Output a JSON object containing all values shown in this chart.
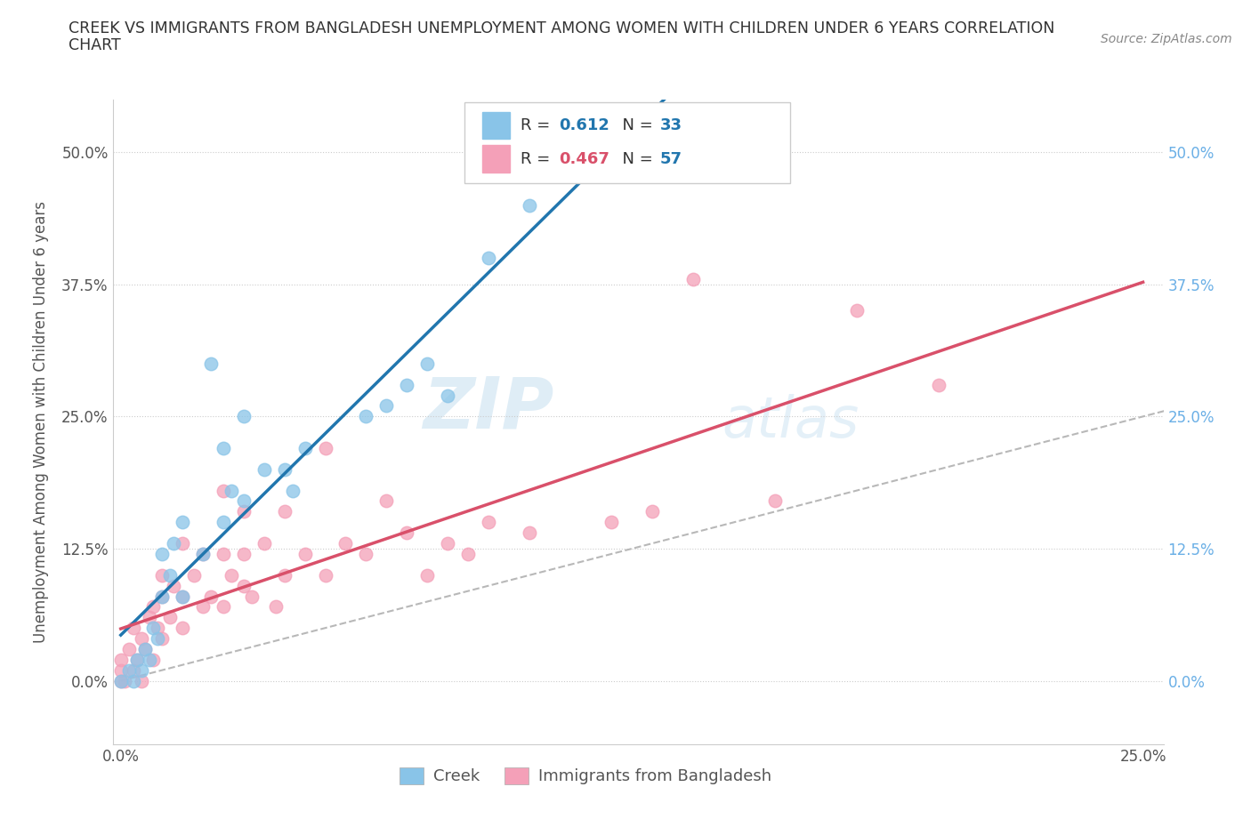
{
  "title_line1": "CREEK VS IMMIGRANTS FROM BANGLADESH UNEMPLOYMENT AMONG WOMEN WITH CHILDREN UNDER 6 YEARS CORRELATION",
  "title_line2": "CHART",
  "source_text": "Source: ZipAtlas.com",
  "ylabel": "Unemployment Among Women with Children Under 6 years",
  "xlim": [
    -0.002,
    0.255
  ],
  "ylim": [
    -0.06,
    0.55
  ],
  "yticks": [
    0.0,
    0.125,
    0.25,
    0.375,
    0.5
  ],
  "ytick_labels": [
    "0.0%",
    "12.5%",
    "25.0%",
    "37.5%",
    "50.0%"
  ],
  "xticks": [
    0.0,
    0.05,
    0.1,
    0.15,
    0.2,
    0.25
  ],
  "xtick_labels": [
    "0.0%",
    "",
    "",
    "",
    "",
    "25.0%"
  ],
  "creek_color": "#89c4e8",
  "bangladesh_color": "#f4a0b8",
  "trendline_creek_color": "#2176ae",
  "trendline_bangladesh_color": "#d9506a",
  "diagonal_color": "#b8b8b8",
  "R_creek": 0.612,
  "N_creek": 33,
  "R_bangladesh": 0.467,
  "N_bangladesh": 57,
  "watermark_zip": "ZIP",
  "watermark_atlas": "atlas",
  "legend_label_creek": "Creek",
  "legend_label_bangladesh": "Immigrants from Bangladesh",
  "creek_x": [
    0.0,
    0.002,
    0.003,
    0.004,
    0.005,
    0.006,
    0.007,
    0.008,
    0.009,
    0.01,
    0.01,
    0.012,
    0.013,
    0.015,
    0.015,
    0.02,
    0.022,
    0.025,
    0.025,
    0.027,
    0.03,
    0.03,
    0.035,
    0.04,
    0.042,
    0.045,
    0.06,
    0.065,
    0.07,
    0.075,
    0.08,
    0.09,
    0.1
  ],
  "creek_y": [
    0.0,
    0.01,
    0.0,
    0.02,
    0.01,
    0.03,
    0.02,
    0.05,
    0.04,
    0.08,
    0.12,
    0.1,
    0.13,
    0.08,
    0.15,
    0.12,
    0.3,
    0.15,
    0.22,
    0.18,
    0.17,
    0.25,
    0.2,
    0.2,
    0.18,
    0.22,
    0.25,
    0.26,
    0.28,
    0.3,
    0.27,
    0.4,
    0.45
  ],
  "bangladesh_x": [
    0.0,
    0.0,
    0.0,
    0.001,
    0.002,
    0.003,
    0.003,
    0.004,
    0.005,
    0.005,
    0.006,
    0.007,
    0.008,
    0.008,
    0.009,
    0.01,
    0.01,
    0.01,
    0.012,
    0.013,
    0.015,
    0.015,
    0.015,
    0.018,
    0.02,
    0.02,
    0.022,
    0.025,
    0.025,
    0.025,
    0.027,
    0.03,
    0.03,
    0.03,
    0.032,
    0.035,
    0.038,
    0.04,
    0.04,
    0.045,
    0.05,
    0.05,
    0.055,
    0.06,
    0.065,
    0.07,
    0.075,
    0.08,
    0.085,
    0.09,
    0.1,
    0.12,
    0.13,
    0.14,
    0.16,
    0.18,
    0.2
  ],
  "bangladesh_y": [
    0.0,
    0.01,
    0.02,
    0.0,
    0.03,
    0.01,
    0.05,
    0.02,
    0.0,
    0.04,
    0.03,
    0.06,
    0.02,
    0.07,
    0.05,
    0.04,
    0.08,
    0.1,
    0.06,
    0.09,
    0.05,
    0.08,
    0.13,
    0.1,
    0.07,
    0.12,
    0.08,
    0.07,
    0.12,
    0.18,
    0.1,
    0.09,
    0.12,
    0.16,
    0.08,
    0.13,
    0.07,
    0.1,
    0.16,
    0.12,
    0.1,
    0.22,
    0.13,
    0.12,
    0.17,
    0.14,
    0.1,
    0.13,
    0.12,
    0.15,
    0.14,
    0.15,
    0.16,
    0.38,
    0.17,
    0.35,
    0.28
  ]
}
